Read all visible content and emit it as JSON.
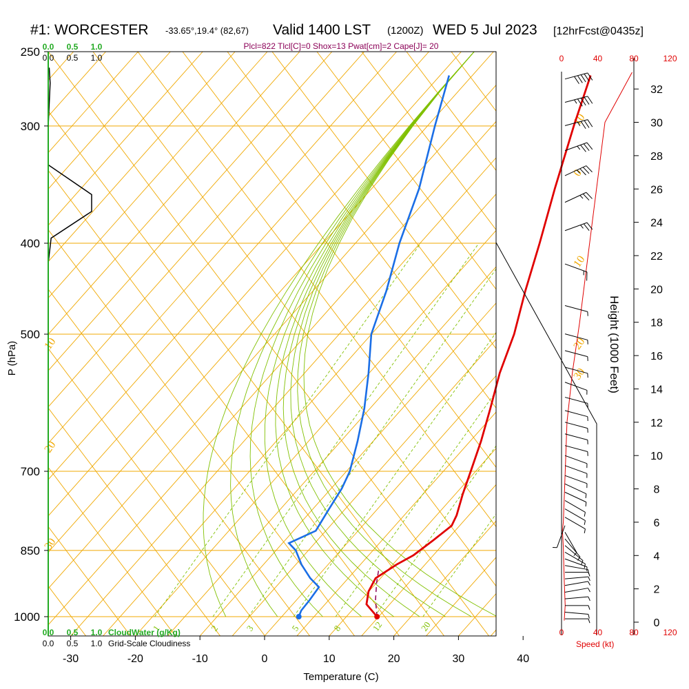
{
  "header": {
    "station": "#1: WORCESTER",
    "coords": "-33.65°,19.4° (82,67)",
    "valid": "Valid 1400 LST",
    "zulu": "(1200Z)",
    "date": "WED 5 Jul 2023",
    "forecast": "[12hrFcst@0435z]",
    "indices": "Plcl=822 Tlcl[C]=0 Shox=13 Pwat[cm]=2 Cape[J]= 20"
  },
  "colors": {
    "temperature": "#e00000",
    "dewpoint": "#1a6ee6",
    "parcel": "#8b0057",
    "isotherm": "#f0a800",
    "dry_adiabat": "#80c000",
    "mixing_ratio": "#80c000",
    "cloud_water": "#22aa22",
    "speed": "#e00000",
    "isobar": "#f0a800"
  },
  "chart_data": {
    "type": "skew-t",
    "title": "#1: WORCESTER -33.65°,19.4° (82,67) Valid 1400 LST (1200Z) WED 5 Jul 2023 [12hrFcst@0435z]",
    "xlabel": "Temperature (C)",
    "ylabel": "P (hPa)",
    "ylabel_right": "Height (1000 Feet)",
    "x_ticks": [
      -30,
      -20,
      -10,
      0,
      10,
      20,
      30,
      40
    ],
    "xlim": [
      -34,
      35
    ],
    "pressure_ticks": [
      250,
      300,
      400,
      500,
      700,
      850,
      1000
    ],
    "pressure_tick_labels": [
      "250",
      "300",
      "400",
      "500",
      "700",
      "850",
      "1000"
    ],
    "height_ticks": [
      0,
      2,
      4,
      6,
      8,
      10,
      12,
      14,
      16,
      18,
      20,
      22,
      24,
      26,
      28,
      30,
      32
    ],
    "isotherm_labels": [
      {
        "label": "10",
        "temp": 10,
        "pressure": 300
      },
      {
        "label": "0",
        "temp": 0,
        "pressure": 340
      },
      {
        "label": "10",
        "temp": 10,
        "pressure": 425
      },
      {
        "label": "20",
        "temp": 20,
        "pressure": 520
      },
      {
        "label": "30",
        "temp": 30,
        "pressure": 560
      },
      {
        "label": "10",
        "temp": -10,
        "pressure": 520
      },
      {
        "label": "20",
        "temp": -20,
        "pressure": 670
      },
      {
        "label": "30",
        "temp": -30,
        "pressure": 850
      }
    ],
    "mixing_ratio_labels": [
      "1",
      "2",
      "3",
      "5",
      "8",
      "12",
      "20"
    ],
    "mixing_ratio_values": [
      1,
      2,
      3,
      5,
      8,
      12,
      20
    ],
    "temperature_profile": [
      {
        "p": 1000,
        "t": 17.4
      },
      {
        "p": 970,
        "t": 14.0
      },
      {
        "p": 940,
        "t": 12.5
      },
      {
        "p": 910,
        "t": 11.7
      },
      {
        "p": 880,
        "t": 13.0
      },
      {
        "p": 860,
        "t": 14.3
      },
      {
        "p": 830,
        "t": 15.2
      },
      {
        "p": 800,
        "t": 16.0
      },
      {
        "p": 780,
        "t": 15.3
      },
      {
        "p": 740,
        "t": 13.2
      },
      {
        "p": 700,
        "t": 11.2
      },
      {
        "p": 650,
        "t": 8.5
      },
      {
        "p": 600,
        "t": 5.3
      },
      {
        "p": 550,
        "t": 1.7
      },
      {
        "p": 500,
        "t": -1.6
      },
      {
        "p": 450,
        "t": -6.0
      },
      {
        "p": 400,
        "t": -10.6
      },
      {
        "p": 350,
        "t": -16.0
      },
      {
        "p": 300,
        "t": -22.0
      },
      {
        "p": 265,
        "t": -26.6
      }
    ],
    "dewpoint_profile": [
      {
        "p": 1000,
        "t": 5.3
      },
      {
        "p": 985,
        "t": 4.8
      },
      {
        "p": 960,
        "t": 4.6
      },
      {
        "p": 930,
        "t": 4.2
      },
      {
        "p": 910,
        "t": 1.6
      },
      {
        "p": 880,
        "t": -1.7
      },
      {
        "p": 850,
        "t": -4.6
      },
      {
        "p": 835,
        "t": -6.7
      },
      {
        "p": 810,
        "t": -4.3
      },
      {
        "p": 770,
        "t": -5.3
      },
      {
        "p": 730,
        "t": -6.3
      },
      {
        "p": 700,
        "t": -7.5
      },
      {
        "p": 650,
        "t": -10.6
      },
      {
        "p": 600,
        "t": -14.2
      },
      {
        "p": 550,
        "t": -18.6
      },
      {
        "p": 500,
        "t": -23.7
      },
      {
        "p": 450,
        "t": -27.5
      },
      {
        "p": 400,
        "t": -32.3
      },
      {
        "p": 350,
        "t": -37.0
      },
      {
        "p": 300,
        "t": -43.5
      },
      {
        "p": 265,
        "t": -48.5
      }
    ],
    "parcel_profile": [
      {
        "p": 1000,
        "t": 17.4
      },
      {
        "p": 960,
        "t": 14.8
      },
      {
        "p": 920,
        "t": 12.5
      },
      {
        "p": 890,
        "t": 10.9
      }
    ],
    "surface_temperature": {
      "p": 1000,
      "t": 17.4
    },
    "surface_dewpoint": {
      "p": 1000,
      "t": 5.3
    },
    "cloud_water": {
      "label": "CloudWater (g/Kg)",
      "ticks": [
        "0.0",
        "0.5",
        "1.0"
      ],
      "profile": [
        {
          "p": 260,
          "v": 0.02
        },
        {
          "p": 270,
          "v": 0.04
        },
        {
          "p": 300,
          "v": 0.0
        },
        {
          "p": 320,
          "v": 0.0
        },
        {
          "p": 330,
          "v": 0.0
        },
        {
          "p": 355,
          "v": 0.9
        },
        {
          "p": 370,
          "v": 0.9
        },
        {
          "p": 395,
          "v": 0.06
        },
        {
          "p": 420,
          "v": 0.0
        }
      ]
    },
    "cloudiness": {
      "label": "Grid-Scale Cloudiness",
      "ticks": [
        "0.0",
        "0.5",
        "1.0"
      ]
    },
    "wind_speed": {
      "label": "Speed (kt)",
      "ticks": [
        "0",
        "40",
        "80",
        "120"
      ],
      "profile": [
        {
          "h": 0.1,
          "s": 3
        },
        {
          "h": 1.0,
          "s": 4
        },
        {
          "h": 2.5,
          "s": 3
        },
        {
          "h": 4.5,
          "s": 2
        },
        {
          "h": 5.5,
          "s": 1
        },
        {
          "h": 6.0,
          "s": 2
        },
        {
          "h": 9.0,
          "s": 4
        },
        {
          "h": 12.0,
          "s": 6
        },
        {
          "h": 15.0,
          "s": 12
        },
        {
          "h": 18.0,
          "s": 20
        },
        {
          "h": 21.0,
          "s": 27
        },
        {
          "h": 24.0,
          "s": 34
        },
        {
          "h": 27.0,
          "s": 41
        },
        {
          "h": 30.0,
          "s": 48
        },
        {
          "h": 32.0,
          "s": 68
        },
        {
          "h": 33.0,
          "s": 78
        }
      ]
    },
    "wind_barbs": [
      {
        "h": 0.2,
        "dir": 270,
        "kt": 5
      },
      {
        "h": 0.6,
        "dir": 275,
        "kt": 5
      },
      {
        "h": 1.0,
        "dir": 270,
        "kt": 5
      },
      {
        "h": 1.4,
        "dir": 265,
        "kt": 5
      },
      {
        "h": 1.8,
        "dir": 260,
        "kt": 5
      },
      {
        "h": 2.2,
        "dir": 260,
        "kt": 5
      },
      {
        "h": 2.6,
        "dir": 265,
        "kt": 5
      },
      {
        "h": 3.0,
        "dir": 270,
        "kt": 5
      },
      {
        "h": 3.4,
        "dir": 280,
        "kt": 5
      },
      {
        "h": 3.8,
        "dir": 290,
        "kt": 5
      },
      {
        "h": 4.2,
        "dir": 300,
        "kt": 5
      },
      {
        "h": 4.6,
        "dir": 310,
        "kt": 5
      },
      {
        "h": 5.0,
        "dir": 320,
        "kt": 5
      },
      {
        "h": 5.4,
        "dir": 330,
        "kt": 5
      },
      {
        "h": 5.8,
        "dir": 20,
        "kt": 5
      },
      {
        "h": 6.3,
        "dir": 300,
        "kt": 5
      },
      {
        "h": 6.8,
        "dir": 300,
        "kt": 5
      },
      {
        "h": 7.3,
        "dir": 300,
        "kt": 5
      },
      {
        "h": 7.8,
        "dir": 295,
        "kt": 5
      },
      {
        "h": 8.3,
        "dir": 295,
        "kt": 5
      },
      {
        "h": 8.8,
        "dir": 290,
        "kt": 5
      },
      {
        "h": 9.4,
        "dir": 290,
        "kt": 5
      },
      {
        "h": 10.0,
        "dir": 290,
        "kt": 5
      },
      {
        "h": 10.6,
        "dir": 285,
        "kt": 5
      },
      {
        "h": 11.3,
        "dir": 285,
        "kt": 5
      },
      {
        "h": 12.0,
        "dir": 285,
        "kt": 5
      },
      {
        "h": 12.7,
        "dir": 285,
        "kt": 5
      },
      {
        "h": 13.5,
        "dir": 285,
        "kt": 5
      },
      {
        "h": 14.4,
        "dir": 290,
        "kt": 5
      },
      {
        "h": 15.3,
        "dir": 285,
        "kt": 5
      },
      {
        "h": 16.3,
        "dir": 285,
        "kt": 5
      },
      {
        "h": 17.3,
        "dir": 285,
        "kt": 5
      },
      {
        "h": 19.0,
        "dir": 285,
        "kt": 5
      },
      {
        "h": 21.5,
        "dir": 290,
        "kt": 15
      },
      {
        "h": 23.5,
        "dir": 250,
        "kt": 25
      },
      {
        "h": 25.2,
        "dir": 245,
        "kt": 25
      },
      {
        "h": 26.8,
        "dir": 245,
        "kt": 35
      },
      {
        "h": 28.3,
        "dir": 250,
        "kt": 35
      },
      {
        "h": 29.8,
        "dir": 255,
        "kt": 35
      },
      {
        "h": 31.2,
        "dir": 255,
        "kt": 45
      },
      {
        "h": 32.6,
        "dir": 255,
        "kt": 50
      }
    ]
  }
}
